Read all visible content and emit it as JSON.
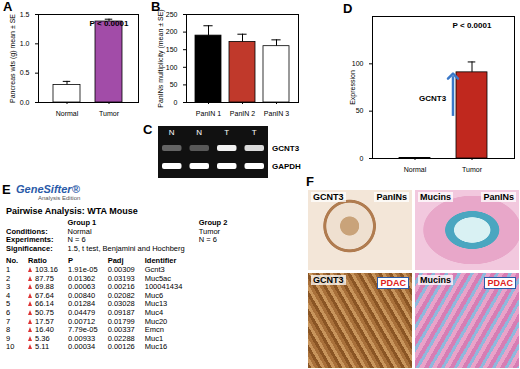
{
  "chart_data": [
    {
      "type": "bar",
      "title": "A",
      "categories": [
        "Normal",
        "Tumor"
      ],
      "values": [
        0.3,
        1.38
      ],
      "errors": [
        0.06,
        0.04
      ],
      "colors": [
        "#ffffff",
        "#a24ca8"
      ],
      "ylabel": "Pancreas wts (g) mean ± SE",
      "ylim": [
        0,
        1.5
      ],
      "yticks": [
        {
          "value": 0,
          "label": "0.0"
        },
        {
          "value": 0.5,
          "label": "0.5"
        },
        {
          "value": 1,
          "label": "1.0"
        },
        {
          "value": 1.5,
          "label": "1.5"
        }
      ],
      "annotations": [
        "P < 0.0001"
      ]
    },
    {
      "type": "bar",
      "title": "B",
      "categories": [
        "PanIN 1",
        "PanIN 2",
        "PanIN 3"
      ],
      "values": [
        190,
        172,
        160
      ],
      "errors": [
        28,
        22,
        18
      ],
      "colors": [
        "#000000",
        "#c0392b",
        "#ffffff"
      ],
      "ylabel": "PanINs multiplicity (mean ± SE)",
      "ylim": [
        0,
        250
      ],
      "yticks": [
        0,
        50,
        100,
        150,
        200,
        250
      ]
    },
    {
      "type": "bar",
      "title": "D",
      "categories": [
        "Normal",
        "Tumor"
      ],
      "values": [
        0.5,
        91
      ],
      "errors": [
        0.3,
        11
      ],
      "colors": [
        "#c0281e",
        "#c0281e"
      ],
      "ylabel": "Expression",
      "ylim": [
        0,
        150
      ],
      "yticks": [
        0,
        50,
        100
      ],
      "annotations": [
        "P < 0.0001",
        "GCNT3"
      ]
    }
  ],
  "gel": {
    "title": "C",
    "lanes": [
      "N",
      "N",
      "T",
      "T"
    ],
    "rows": [
      {
        "label": "GCNT3",
        "intensity": [
          0.35,
          0.3,
          0.95,
          0.85
        ]
      },
      {
        "label": "GAPDH",
        "intensity": [
          1,
          1,
          1,
          1
        ]
      }
    ]
  },
  "table": {
    "title": "E",
    "logo": "GeneSifter®",
    "logo_sub": "Analysis Edition",
    "heading": "Pairwise Analysis: WTA Mouse",
    "groups": {
      "header": [
        "",
        "Group 1",
        "Group 2"
      ],
      "rows": [
        [
          "Conditions:",
          "Normal",
          "Tumor"
        ],
        [
          "Experiments:",
          "N = 6",
          "N = 6"
        ],
        [
          "Significance:",
          "1.5, t test, Benjamini and Hochberg",
          ""
        ]
      ]
    },
    "columns": [
      "No.",
      "Ratio",
      "P",
      "Padj",
      "Identifier"
    ],
    "rows": [
      [
        "1",
        "103.16",
        "1.91e-05",
        "0.00309",
        "Gcnt3"
      ],
      [
        "2",
        "87.75",
        "0.01362",
        "0.03193",
        "Muc5ac"
      ],
      [
        "3",
        "69.88",
        "0.00063",
        "0.00216",
        "100041434"
      ],
      [
        "4",
        "67.64",
        "0.00840",
        "0.02082",
        "Muc6"
      ],
      [
        "5",
        "66.14",
        "0.01284",
        "0.03028",
        "Muc13"
      ],
      [
        "6",
        "50.75",
        "0.04479",
        "0.09187",
        "Muc4"
      ],
      [
        "7",
        "17.57",
        "0.00712",
        "0.01799",
        "Muc20"
      ],
      [
        "8",
        "16.40",
        "7.79e-05",
        "0.00337",
        "Emcn"
      ],
      [
        "9",
        "5.36",
        "0.00933",
        "0.02288",
        "Muc1"
      ],
      [
        "10",
        "5.11",
        "0.00034",
        "0.00126",
        "Muc16"
      ]
    ]
  },
  "images": {
    "title": "F",
    "panels": [
      {
        "labels": [
          "GCNT3",
          "PanINs"
        ]
      },
      {
        "labels": [
          "Mucins",
          "PanINs"
        ]
      },
      {
        "labels": [
          "GCNT3",
          "PDAC"
        ]
      },
      {
        "labels": [
          "Mucins",
          "PDAC"
        ]
      }
    ]
  }
}
